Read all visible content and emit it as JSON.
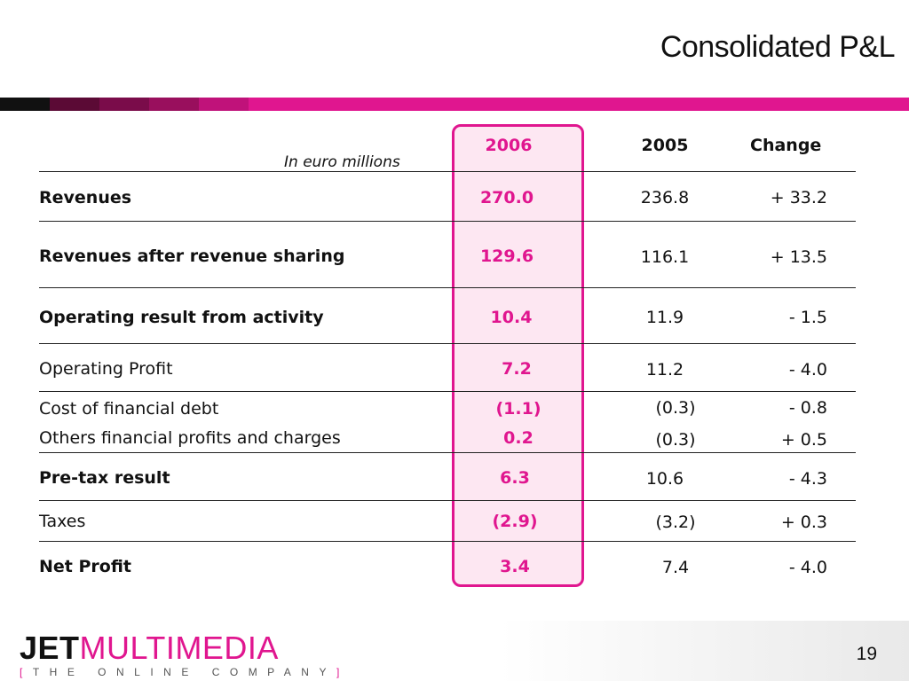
{
  "slide": {
    "title": "Consolidated P&L",
    "page_number": "19"
  },
  "table": {
    "units_note": "In euro millions",
    "headers": {
      "y2006": "2006",
      "y2005": "2005",
      "change": "Change"
    },
    "rows": [
      {
        "label": "Revenues",
        "v2006": "270.0",
        "v2005": "236.8",
        "change": "+ 33.2"
      },
      {
        "label": "Revenues after revenue sharing",
        "v2006": "129.6",
        "v2005": "116.1",
        "change": "+ 13.5"
      },
      {
        "label": "Operating result from activity",
        "v2006": "10.4",
        "v2005": "11.9",
        "change": "- 1.5"
      },
      {
        "label": "Operating Profit",
        "v2006": "7.2",
        "v2005": "11.2",
        "change": "- 4.0"
      },
      {
        "label": "Cost of financial debt",
        "v2006": "(1.1)",
        "v2005": "(0.3)",
        "change": "- 0.8"
      },
      {
        "label": "Others financial profits and charges",
        "v2006": "0.2",
        "v2005": "(0.3)",
        "change": "+ 0.5"
      },
      {
        "label": "Pre-tax result",
        "v2006": "6.3",
        "v2005": "10.6",
        "change": "- 4.3"
      },
      {
        "label": "Taxes",
        "v2006": "(2.9)",
        "v2005": "(3.2)",
        "change": "+ 0.3"
      },
      {
        "label": "Net Profit",
        "v2006": "3.4",
        "v2005": "7.4",
        "change": "- 4.0"
      }
    ]
  },
  "logo": {
    "jet": "JET",
    "multimedia": "MULTIMEDIA",
    "tagline_open": "[",
    "tagline": "THE ONLINE COMPANY",
    "tagline_close": "]"
  },
  "colors": {
    "accent": "#e0168f",
    "highlight_fill": "#fde7f2",
    "text": "#111111"
  }
}
